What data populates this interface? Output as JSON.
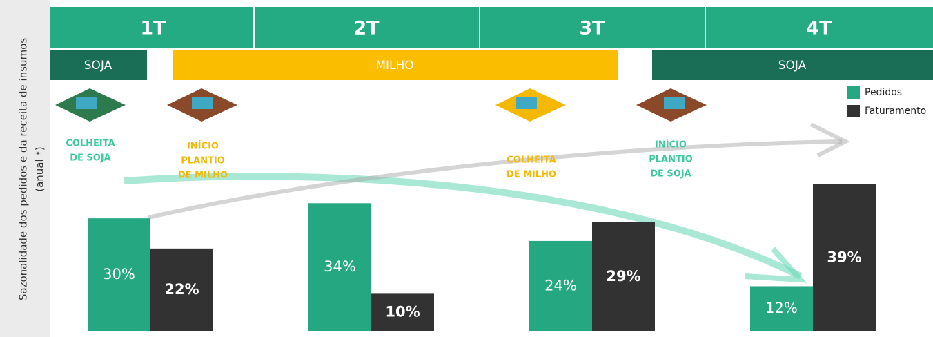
{
  "chart_data": {
    "type": "bar",
    "ylabel": [
      "Sazonalidade dos pedidos e da receita de insumos",
      "(anual *)"
    ],
    "categories": [
      "1T",
      "2T",
      "3T",
      "4T"
    ],
    "series": [
      {
        "name": "Pedidos",
        "color": "#25a882",
        "values": [
          30,
          34,
          24,
          12
        ],
        "value_labels": [
          "30%",
          "34%",
          "24%",
          "12%"
        ]
      },
      {
        "name": "Faturamento",
        "color": "#323232",
        "values": [
          22,
          10,
          29,
          39
        ],
        "value_labels": [
          "22%",
          "10%",
          "29%",
          "39%"
        ]
      }
    ],
    "seasons": [
      "SOJA",
      "MILHO",
      "SOJA"
    ],
    "events": [
      {
        "lines": [
          "COLHEITA",
          "DE SOJA"
        ],
        "color": "#3cc9a0"
      },
      {
        "lines": [
          "INÍCIO",
          "PLANTIO",
          "DE MILHO"
        ],
        "color": "#f5b800"
      },
      {
        "lines": [
          "COLHEITA",
          "DE MILHO"
        ],
        "color": "#f5b800"
      },
      {
        "lines": [
          "INÍCIO",
          "PLANTIO",
          "DE SOJA"
        ],
        "color": "#3cc9a0"
      }
    ],
    "legend": "top-right"
  }
}
